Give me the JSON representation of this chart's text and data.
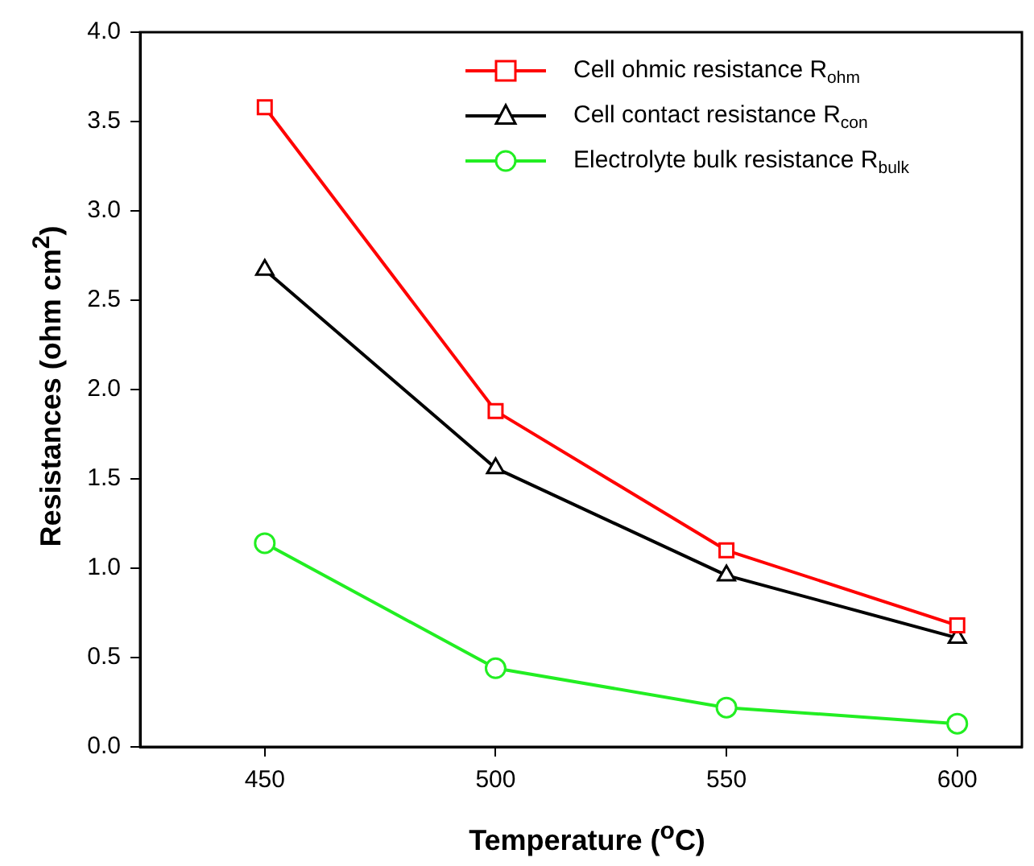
{
  "chart_data": {
    "type": "line",
    "xlabel": "Temperature ($^{o}$C)",
    "ylabel": "Resistances (ohm cm$^{2}$)",
    "x": [
      450,
      500,
      550,
      600
    ],
    "series": [
      {
        "name": "Cell ohmic resistance R$_{ohm}$",
        "color": "#ff0000",
        "marker": "square",
        "values": [
          3.58,
          1.88,
          1.1,
          0.68
        ]
      },
      {
        "name": "Cell contact resistance R$_{con}$",
        "color": "#000000",
        "marker": "triangle",
        "values": [
          2.67,
          1.56,
          0.96,
          0.61
        ]
      },
      {
        "name": "Electrolyte bulk resistance R$_{bulk}$",
        "color": "#22ee22",
        "marker": "circle",
        "values": [
          1.14,
          0.44,
          0.22,
          0.13
        ]
      }
    ],
    "xlim": [
      423,
      614
    ],
    "xticks": [
      450,
      500,
      550,
      600
    ],
    "ylim": [
      0,
      4
    ],
    "yticks": [
      {
        "value": 0,
        "label": "0.0"
      },
      {
        "value": 0.5,
        "label": "0.5"
      },
      {
        "value": 1,
        "label": "1.0"
      },
      {
        "value": 1.5,
        "label": "1.5"
      },
      {
        "value": 2,
        "label": "2.0"
      },
      {
        "value": 2.5,
        "label": "2.5"
      },
      {
        "value": 3,
        "label": "3.0"
      },
      {
        "value": 3.5,
        "label": "3.5"
      },
      {
        "value": 4,
        "label": "4.0"
      }
    ],
    "grid": false,
    "legend": "top right",
    "line_style": "solid"
  }
}
